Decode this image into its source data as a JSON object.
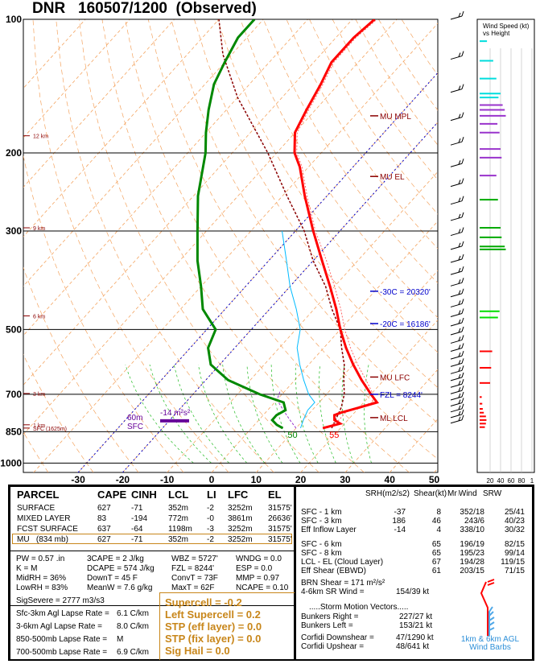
{
  "title": "DNR   160507/1200  (Observed)",
  "chart_data": {
    "type": "skew-t",
    "pressure_ticks": [
      "100",
      "200",
      "300",
      "500",
      "700",
      "850",
      "1000"
    ],
    "pressure_tick_values": [
      100,
      200,
      300,
      500,
      700,
      850,
      1000
    ],
    "temperature_ticks": [
      "-30",
      "-20",
      "-10",
      "0",
      "10",
      "20",
      "30",
      "40",
      "50"
    ],
    "temperature_tick_values": [
      -30,
      -20,
      -10,
      0,
      10,
      20,
      30,
      40,
      50
    ],
    "height_labels": [
      {
        "text": "12 km",
        "p": 183
      },
      {
        "text": "9 km",
        "p": 295
      },
      {
        "text": "6 km",
        "p": 466
      },
      {
        "text": "3 km",
        "p": 697
      },
      {
        "text": "1 km",
        "p": 820
      },
      {
        "text": "SFC (1625m)",
        "p": 834
      }
    ],
    "temperature_profile": [
      [
        834,
        16.0
      ],
      [
        815,
        19.0
      ],
      [
        800,
        17.0
      ],
      [
        780,
        16.0
      ],
      [
        770,
        17.0
      ],
      [
        750,
        20.0
      ],
      [
        730,
        23.0
      ],
      [
        700,
        20.0
      ],
      [
        650,
        15.0
      ],
      [
        600,
        10.0
      ],
      [
        550,
        5.0
      ],
      [
        500,
        0.0
      ],
      [
        450,
        -5.0
      ],
      [
        400,
        -11.0
      ],
      [
        350,
        -18.0
      ],
      [
        300,
        -26.0
      ],
      [
        250,
        -35.0
      ],
      [
        215,
        -42.0
      ],
      [
        200,
        -46.0
      ],
      [
        180,
        -50.0
      ],
      [
        160,
        -52.0
      ],
      [
        140,
        -54.0
      ],
      [
        125,
        -56.0
      ],
      [
        110,
        -56.0
      ],
      [
        100,
        -55.0
      ]
    ],
    "dewpoint_profile": [
      [
        834,
        7.0
      ],
      [
        820,
        5.0
      ],
      [
        800,
        3.0
      ],
      [
        780,
        3.0
      ],
      [
        760,
        4.0
      ],
      [
        730,
        2.0
      ],
      [
        700,
        -5.0
      ],
      [
        650,
        -15.0
      ],
      [
        600,
        -22.0
      ],
      [
        550,
        -26.0
      ],
      [
        500,
        -28.0
      ],
      [
        450,
        -35.0
      ],
      [
        400,
        -40.0
      ],
      [
        350,
        -46.0
      ],
      [
        300,
        -52.0
      ],
      [
        250,
        -59.0
      ],
      [
        200,
        -66.0
      ],
      [
        180,
        -70.0
      ],
      [
        160,
        -74.0
      ],
      [
        140,
        -78.0
      ],
      [
        125,
        -80.0
      ],
      [
        110,
        -82.0
      ],
      [
        100,
        -82.0
      ]
    ],
    "virtual_temperature_profile": [
      [
        834,
        17.0
      ],
      [
        800,
        18.0
      ],
      [
        760,
        18.0
      ],
      [
        730,
        22.0
      ],
      [
        700,
        20.5
      ],
      [
        650,
        16.0
      ],
      [
        600,
        11.0
      ],
      [
        550,
        6.0
      ],
      [
        500,
        1.0
      ],
      [
        450,
        -4.0
      ],
      [
        400,
        -10.0
      ],
      [
        350,
        -17.0
      ],
      [
        300,
        -25.5
      ],
      [
        250,
        -34.5
      ],
      [
        215,
        -41.5
      ],
      [
        200,
        -45.5
      ],
      [
        180,
        -49.5
      ],
      [
        160,
        -51.5
      ],
      [
        140,
        -53.5
      ],
      [
        125,
        -55.5
      ],
      [
        110,
        -55.5
      ],
      [
        100,
        -54.5
      ]
    ],
    "parcel_profile": [
      [
        834,
        18.0
      ],
      [
        750,
        16.0
      ],
      [
        700,
        14.0
      ],
      [
        650,
        11.0
      ],
      [
        600,
        8.0
      ],
      [
        550,
        4.0
      ],
      [
        500,
        0.0
      ],
      [
        450,
        -6.0
      ],
      [
        400,
        -12.0
      ],
      [
        350,
        -20.0
      ],
      [
        300,
        -28.0
      ],
      [
        250,
        -39.0
      ],
      [
        200,
        -52.0
      ],
      [
        150,
        -70.0
      ],
      [
        120,
        -82.0
      ],
      [
        100,
        -90.0
      ]
    ],
    "wetbulb_profile": [
      [
        834,
        11.0
      ],
      [
        800,
        10.0
      ],
      [
        760,
        9.0
      ],
      [
        730,
        9.0
      ],
      [
        700,
        6.0
      ],
      [
        650,
        2.0
      ],
      [
        600,
        -2.0
      ],
      [
        550,
        -6.0
      ],
      [
        500,
        -9.0
      ],
      [
        450,
        -14.0
      ],
      [
        400,
        -20.0
      ],
      [
        350,
        -26.0
      ],
      [
        300,
        -33.0
      ]
    ],
    "downdraft_profile": [
      [
        834,
        10.0
      ],
      [
        800,
        7.0
      ],
      [
        760,
        3.5
      ],
      [
        720,
        0.0
      ],
      [
        690,
        -1.0
      ]
    ],
    "level_labels": [
      {
        "text": "MU  MPL",
        "p": 165,
        "color": "#8b0000"
      },
      {
        "text": "MU  EL",
        "p": 226,
        "color": "#8b0000"
      },
      {
        "text": "-30C = 20320'",
        "p": 410,
        "color": "#0000cc"
      },
      {
        "text": "-20C = 16186'",
        "p": 485,
        "color": "#0000cc"
      },
      {
        "text": "MU  LFC",
        "p": 640,
        "color": "#8b0000"
      },
      {
        "text": "FZL = 8244'",
        "p": 700,
        "color": "#0000cc"
      },
      {
        "text": "ML  LCL",
        "p": 790,
        "color": "#8b0000"
      }
    ],
    "surface_temp_label": "55",
    "surface_dewpoint_label": "50",
    "effective_inflow_label": "-14 m²s²",
    "sfc_label": "SFC",
    "height_60m_label": "60m",
    "wind_panel_title": "Wind Speed (kt)\nvs Height",
    "wind_speed_ticks": [
      "20",
      "40",
      "60",
      "80",
      "1"
    ],
    "wind_speed_tick_values": [
      20,
      40,
      60,
      80,
      100
    ],
    "wind_speeds": [
      {
        "p": 830,
        "spd": 10,
        "color": "#ff0000"
      },
      {
        "p": 815,
        "spd": 12,
        "color": "#ff0000"
      },
      {
        "p": 800,
        "spd": 13,
        "color": "#ff0000"
      },
      {
        "p": 785,
        "spd": 12,
        "color": "#ff0000"
      },
      {
        "p": 770,
        "spd": 8,
        "color": "#ff0000"
      },
      {
        "p": 755,
        "spd": 6,
        "color": "#ff0000"
      },
      {
        "p": 735,
        "spd": 5,
        "color": "#ff0000"
      },
      {
        "p": 710,
        "spd": 4,
        "color": "#ff0000"
      },
      {
        "p": 660,
        "spd": 20,
        "color": "#ff0000"
      },
      {
        "p": 610,
        "spd": 22,
        "color": "#ff0000"
      },
      {
        "p": 560,
        "spd": 24,
        "color": "#ff0000"
      },
      {
        "p": 470,
        "spd": 35,
        "color": "#00dd00"
      },
      {
        "p": 455,
        "spd": 38,
        "color": "#00dd00"
      },
      {
        "p": 330,
        "spd": 50,
        "color": "#00aa00"
      },
      {
        "p": 325,
        "spd": 48,
        "color": "#00aa00"
      },
      {
        "p": 310,
        "spd": 42,
        "color": "#00aa00"
      },
      {
        "p": 295,
        "spd": 40,
        "color": "#00aa00"
      },
      {
        "p": 255,
        "spd": 35,
        "color": "#00aa00"
      },
      {
        "p": 225,
        "spd": 32,
        "color": "#9933cc"
      },
      {
        "p": 205,
        "spd": 42,
        "color": "#9933cc"
      },
      {
        "p": 196,
        "spd": 40,
        "color": "#9933cc"
      },
      {
        "p": 180,
        "spd": 38,
        "color": "#9933cc"
      },
      {
        "p": 172,
        "spd": 34,
        "color": "#9933cc"
      },
      {
        "p": 165,
        "spd": 50,
        "color": "#9933cc"
      },
      {
        "p": 160,
        "spd": 48,
        "color": "#9933cc"
      },
      {
        "p": 156,
        "spd": 44,
        "color": "#9933cc"
      },
      {
        "p": 150,
        "spd": 36,
        "color": "#00dddd"
      },
      {
        "p": 147,
        "spd": 40,
        "color": "#00dddd"
      },
      {
        "p": 136,
        "spd": 32,
        "color": "#00dddd"
      },
      {
        "p": 124,
        "spd": 26,
        "color": "#00dddd"
      },
      {
        "p": 112,
        "spd": 14,
        "color": "#00dddd"
      }
    ]
  },
  "parcel_table": {
    "headers": [
      "PARCEL",
      "CAPE",
      "CINH",
      "LCL",
      "LI",
      "LFC",
      "EL"
    ],
    "rows": [
      [
        "SURFACE",
        "627",
        "-71",
        "352m",
        "-2",
        "3252m",
        "31575'"
      ],
      [
        "MIXED LAYER",
        "83",
        "-194",
        "772m",
        "-0",
        "3861m",
        "26636'"
      ],
      [
        "FCST SURFACE",
        "637",
        "-64",
        "1198m",
        "-3",
        "3252m",
        "31575'"
      ],
      [
        "MU   (834 mb)",
        "627",
        "-71",
        "352m",
        "-2",
        "3252m",
        "31575'"
      ]
    ]
  },
  "thermo_params": [
    [
      "PW = 0.57 .in",
      "3CAPE = 2 J/kg",
      "WBZ = 5727'",
      "WNDG = 0.0"
    ],
    [
      "K = M",
      "DCAPE = 574 J/kg",
      "FZL = 8244'",
      "ESP = 0.0"
    ],
    [
      "MidRH = 36%",
      "DownT = 45 F",
      "ConvT = 73F",
      "MMP = 0.97"
    ],
    [
      "LowRH = 83%",
      "MeanW = 7.6 g/kg",
      "MaxT = 62F",
      "NCAPE = 0.10"
    ]
  ],
  "sig_severe": "SigSevere = 2777 m3/s3",
  "lapse_rates": [
    {
      "label": "Sfc-3km Agl Lapse Rate =",
      "value": "6.1 C/km"
    },
    {
      "label": "3-6km Agl Lapse Rate =",
      "value": "8.0 C/km"
    },
    {
      "label": "850-500mb Lapse Rate =",
      "value": "M"
    },
    {
      "label": "700-500mb Lapse Rate =",
      "value": "6.9 C/km"
    }
  ],
  "composites": [
    "Supercell = -0.2",
    "Left Supercell = 0.2",
    "STP (eff layer) = 0.0",
    "STP (fix layer) = 0.0",
    "Sig Hail = 0.0"
  ],
  "kinematic_headers": [
    "SRH(m2/s2)",
    "Shear(kt)",
    "MnWind",
    "SRW"
  ],
  "kinematics": [
    [
      "SFC - 1 km",
      "-37",
      "8",
      "352/18",
      "25/41"
    ],
    [
      "SFC - 3 km",
      "186",
      "46",
      "243/6",
      "40/23"
    ],
    [
      "Eff Inflow Layer",
      "-14",
      "4",
      "338/10",
      "30/32"
    ],
    [
      "SFC - 6 km",
      "65",
      "196/19",
      "82/15"
    ],
    [
      "SFC - 8 km",
      "65",
      "195/23",
      "99/14"
    ],
    [
      "LCL - EL (Cloud Layer)",
      "67",
      "194/28",
      "119/15"
    ],
    [
      "Eff Shear (EBWD)",
      "61",
      "203/15",
      "71/15"
    ]
  ],
  "brn_shear": "BRN Shear = 171 m²/s²",
  "sr_wind": {
    "label": "4-6km SR Wind =",
    "value": "154/39 kt"
  },
  "storm_motion_title": ".....Storm Motion Vectors.....",
  "storm_motion": [
    {
      "label": "Bunkers Right =",
      "value": "227/27 kt"
    },
    {
      "label": "Bunkers Left =",
      "value": "153/21 kt"
    }
  ],
  "corfidi": [
    {
      "label": "Corfidi Downshear =",
      "value": "47/1290 kt"
    },
    {
      "label": "Corfidi Upshear =",
      "value": "48/641 kt"
    }
  ],
  "hodo_label": "1km & 6km AGL\nWind Barbs"
}
